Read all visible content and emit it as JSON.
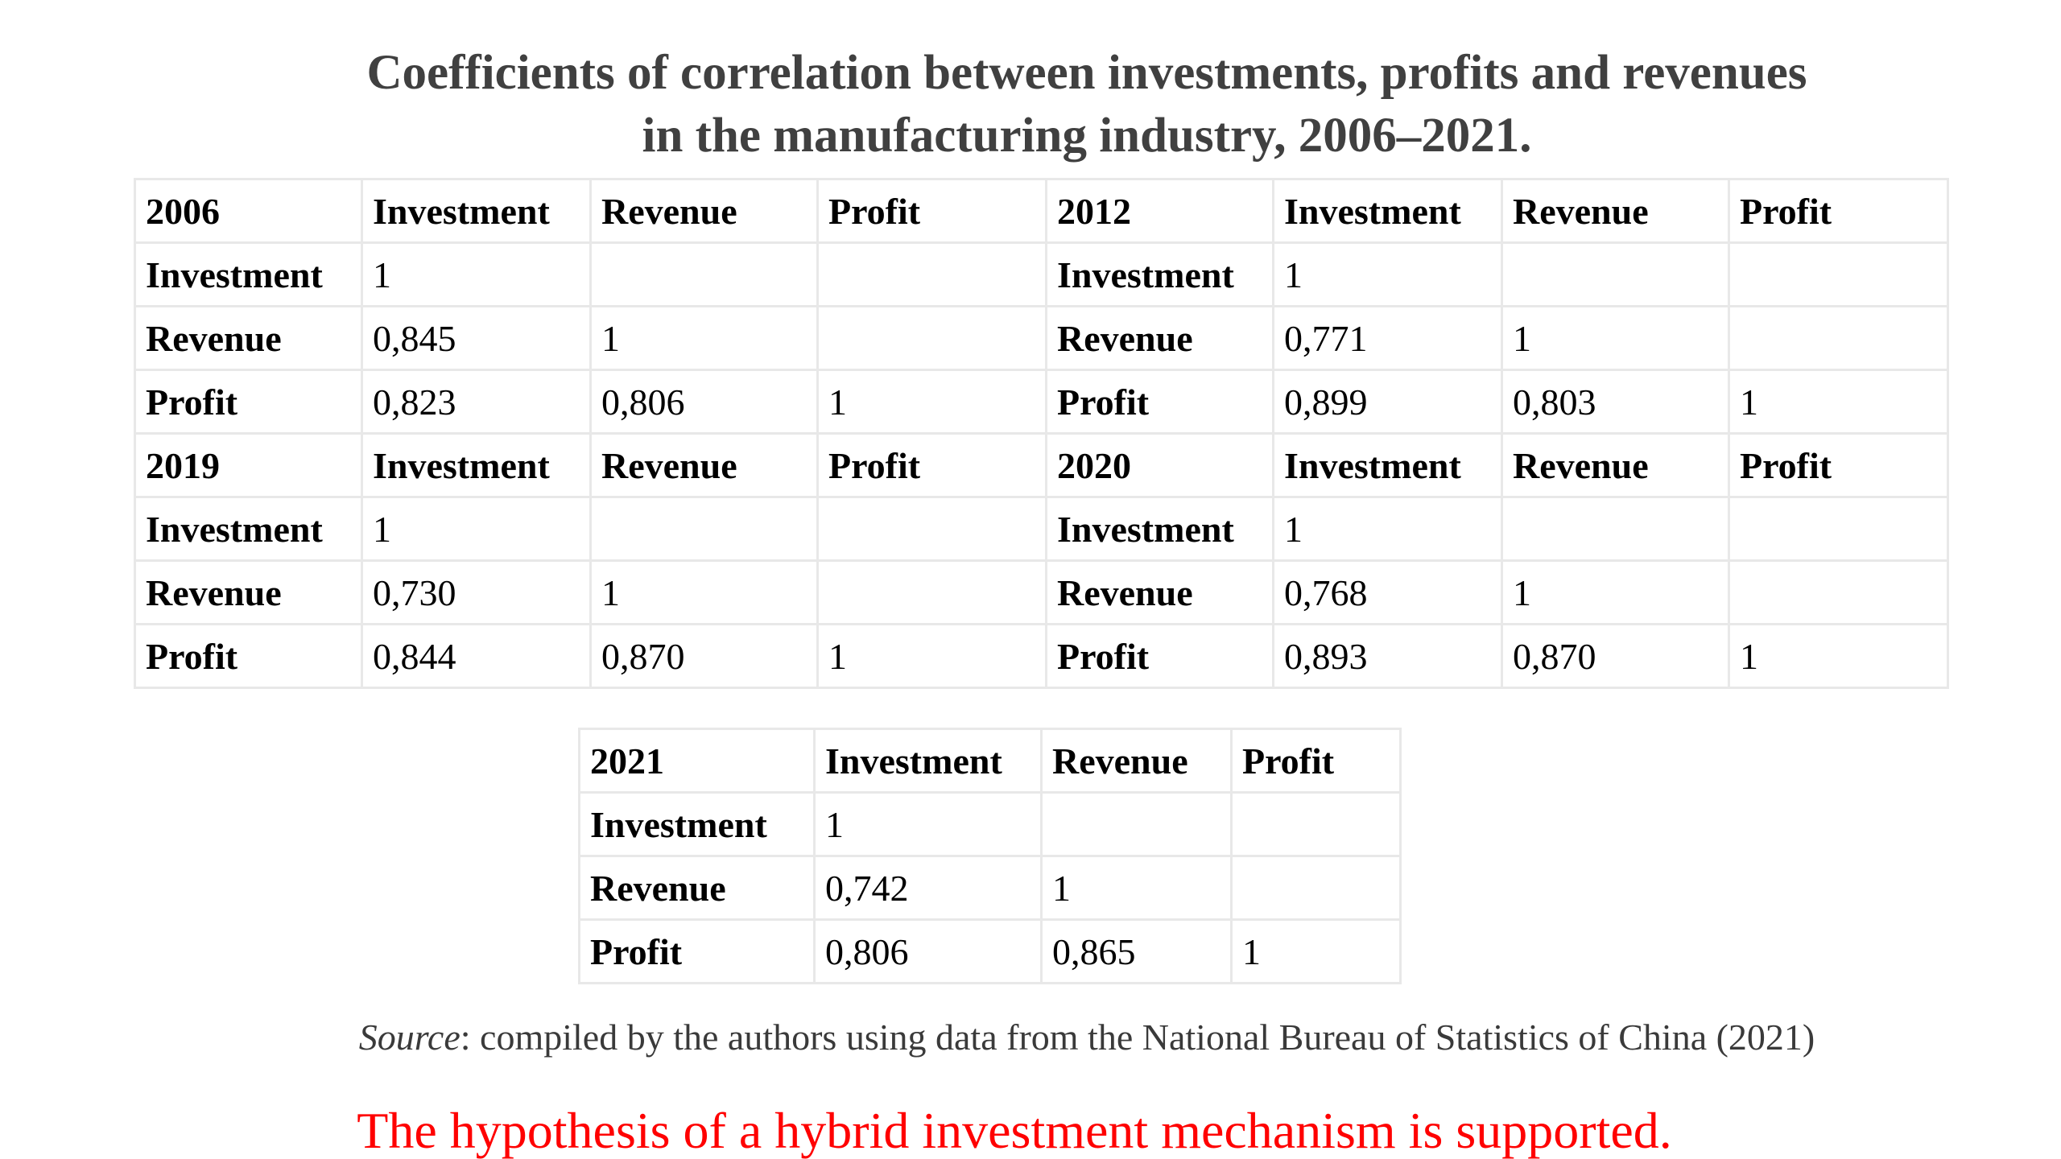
{
  "title": {
    "line1": "Coefficients of correlation between investments, profits and revenues",
    "line2": "in the manufacturing industry, 2006–2021."
  },
  "headers": {
    "investment": "Investment",
    "revenue": "Revenue",
    "profit": "Profit"
  },
  "tables": {
    "y2006": {
      "year": "2006",
      "investment": [
        "1",
        "",
        ""
      ],
      "revenue": [
        "0,845",
        "1",
        ""
      ],
      "profit": [
        "0,823",
        "0,806",
        "1"
      ]
    },
    "y2012": {
      "year": "2012",
      "investment": [
        "1",
        "",
        ""
      ],
      "revenue": [
        "0,771",
        "1",
        ""
      ],
      "profit": [
        "0,899",
        "0,803",
        "1"
      ]
    },
    "y2019": {
      "year": "2019",
      "investment": [
        "1",
        "",
        ""
      ],
      "revenue": [
        "0,730",
        "1",
        ""
      ],
      "profit": [
        "0,844",
        "0,870",
        "1"
      ]
    },
    "y2020": {
      "year": "2020",
      "investment": [
        "1",
        "",
        ""
      ],
      "revenue": [
        "0,768",
        "1",
        ""
      ],
      "profit": [
        "0,893",
        "0,870",
        "1"
      ]
    },
    "y2021": {
      "year": "2021",
      "investment": [
        "1",
        "",
        ""
      ],
      "revenue": [
        "0,742",
        "1",
        ""
      ],
      "profit": [
        "0,806",
        "0,865",
        "1"
      ]
    }
  },
  "source": {
    "label": "Source",
    "text": ": compiled by the authors using data from the National Bureau of Statistics of China (2021)"
  },
  "conclusion": "The hypothesis of a hybrid investment mechanism is supported.",
  "colors": {
    "title": "#404040",
    "conclusion": "#ff0000",
    "border": "#e8e8e8"
  }
}
